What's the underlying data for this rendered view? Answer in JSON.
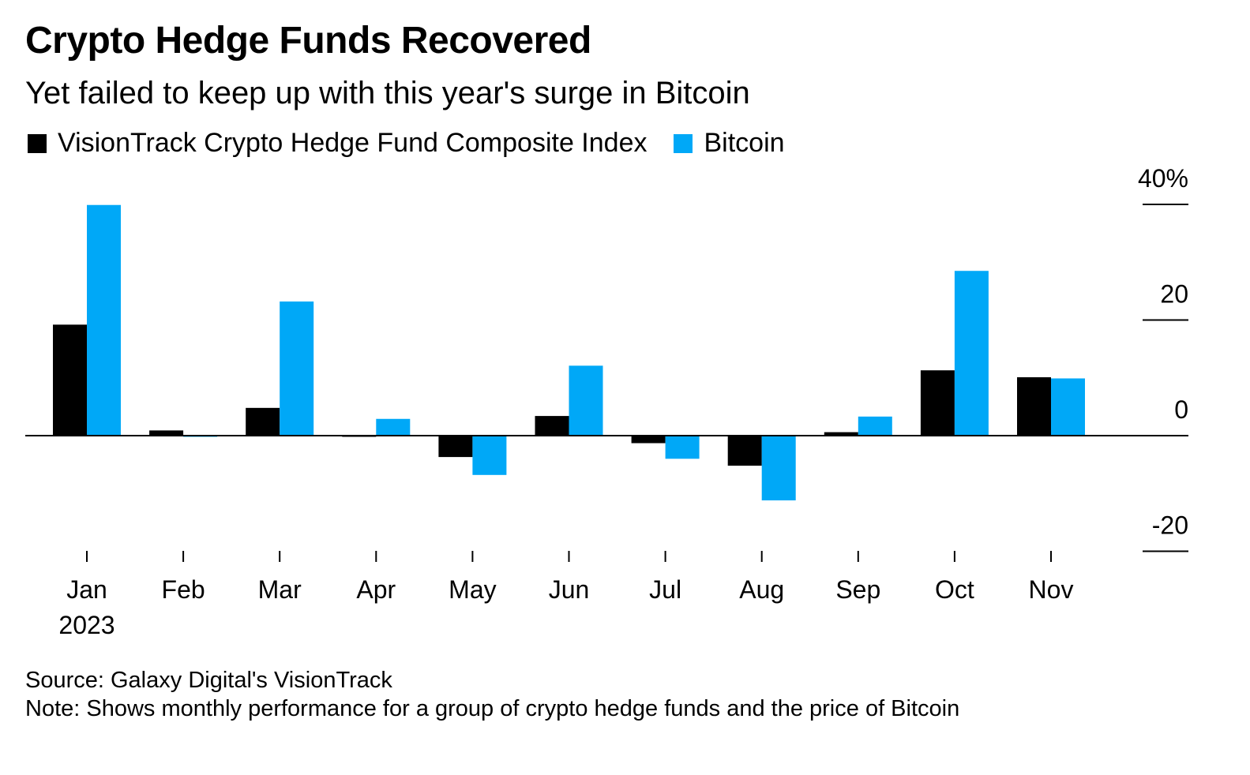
{
  "title": "Crypto Hedge Funds Recovered",
  "subtitle": "Yet failed to keep up with this year's surge in Bitcoin",
  "legend": [
    {
      "label": "VisionTrack Crypto Hedge Fund Composite Index",
      "color": "#000000"
    },
    {
      "label": "Bitcoin",
      "color": "#00a8f7"
    }
  ],
  "source": "Source: Galaxy Digital's VisionTrack",
  "note": "Note: Shows monthly performance for a group of crypto hedge funds and the price of Bitcoin",
  "chart_data": {
    "type": "bar",
    "title": "Crypto Hedge Funds Recovered",
    "subtitle": "Yet failed to keep up with this year's surge in Bitcoin",
    "categories": [
      "Jan",
      "Feb",
      "Mar",
      "Apr",
      "May",
      "Jun",
      "Jul",
      "Aug",
      "Sep",
      "Oct",
      "Nov"
    ],
    "year_label": "2023",
    "series": [
      {
        "name": "VisionTrack Crypto Hedge Fund Composite Index",
        "color": "#000000",
        "values": [
          19.2,
          0.9,
          4.8,
          -0.2,
          -3.7,
          3.4,
          -1.3,
          -5.2,
          0.6,
          11.3,
          10.1
        ]
      },
      {
        "name": "Bitcoin",
        "color": "#00a8f7",
        "values": [
          39.9,
          -0.1,
          23.2,
          2.9,
          -6.8,
          12.1,
          -4.0,
          -11.2,
          3.3,
          28.5,
          9.9
        ]
      }
    ],
    "ylim": [
      -20,
      40
    ],
    "yticks": [
      -20,
      0,
      20,
      40
    ],
    "ytick_labels": [
      "-20",
      "0",
      "20",
      "40%"
    ],
    "y_axis_position": "right",
    "grid": false,
    "legend_position": "top-left",
    "xlabel": "",
    "ylabel": ""
  }
}
